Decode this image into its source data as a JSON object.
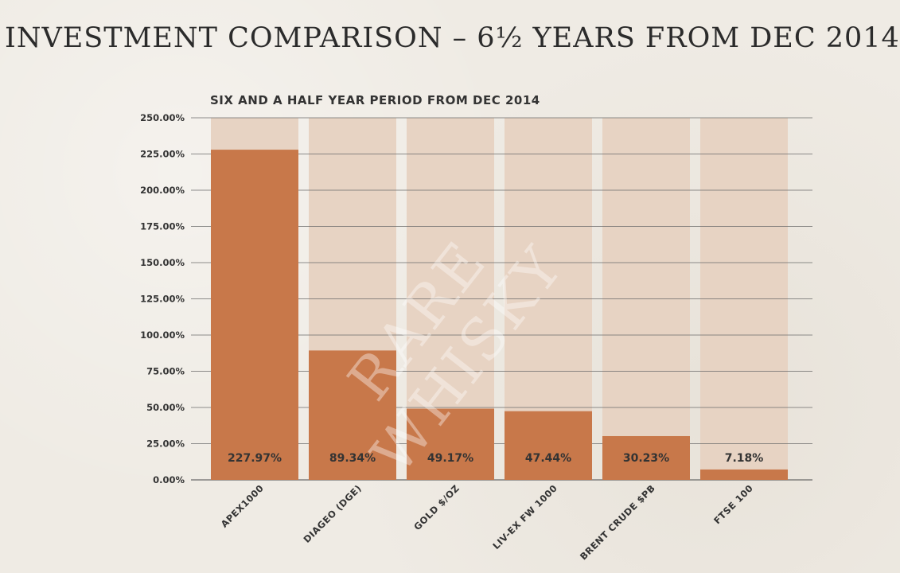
{
  "page": {
    "title": "INVESTMENT COMPARISON – 6½ YEARS FROM DEC 2014",
    "watermark_line1": "RARE",
    "watermark_line2": "WHISKY"
  },
  "colors": {
    "bar": "#c8784a",
    "bar_background": "#e7d3c3",
    "gridline": "#6a6a6a"
  },
  "chart_data": {
    "type": "bar",
    "title": "SIX AND A HALF YEAR PERIOD FROM DEC 2014",
    "xlabel": "",
    "ylabel": "",
    "ylim": [
      0,
      250
    ],
    "yticks": [
      0,
      25,
      50,
      75,
      100,
      125,
      150,
      175,
      200,
      225,
      250
    ],
    "ytick_labels": [
      "0.00%",
      "25.00%",
      "50.00%",
      "75.00%",
      "100.00%",
      "125.00%",
      "150.00%",
      "175.00%",
      "200.00%",
      "225.00%",
      "250.00%"
    ],
    "categories": [
      "APEX1000",
      "DIAGEO (DGE)",
      "GOLD $/OZ",
      "LIV-EX FW 1000",
      "BRENT CRUDE $PB",
      "FTSE 100"
    ],
    "values": [
      227.97,
      89.34,
      49.17,
      47.44,
      30.23,
      7.18
    ],
    "data_labels": [
      "227.97%",
      "89.34%",
      "49.17%",
      "47.44%",
      "30.23%",
      "7.18%"
    ],
    "grid": true,
    "legend": "none"
  }
}
